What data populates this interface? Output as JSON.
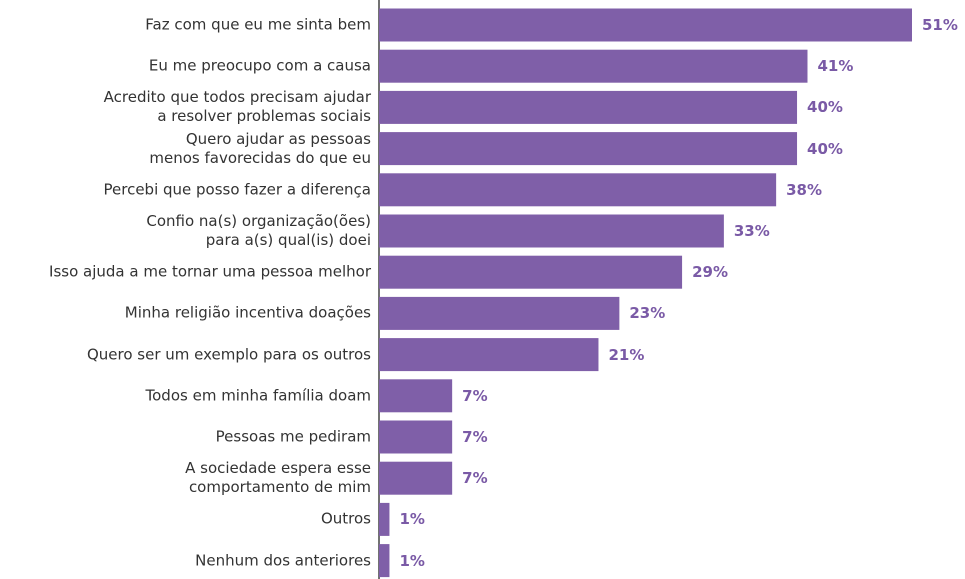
{
  "chart_data": {
    "type": "barh",
    "categories": [
      "Faz com que eu me sinta bem",
      "Eu me preocupo com a causa",
      "Acredito que todos precisam ajudar\na resolver problemas sociais",
      "Quero ajudar as pessoas\nmenos favorecidas do que eu",
      "Percebi que posso fazer a diferença",
      "Confio na(s) organização(ões)\npara a(s) qual(is) doei",
      "Isso ajuda a me tornar uma pessoa melhor",
      "Minha religião incentiva doações",
      "Quero ser um exemplo para os outros",
      "Todos em minha família doam",
      "Pessoas me pediram",
      "A sociedade espera esse\ncomportamento de mim",
      "Outros",
      "Nenhum dos anteriores"
    ],
    "values": [
      51,
      41,
      40,
      40,
      38,
      33,
      29,
      23,
      21,
      7,
      7,
      7,
      1,
      1
    ],
    "value_labels": [
      "51%",
      "41%",
      "40%",
      "40%",
      "38%",
      "33%",
      "29%",
      "23%",
      "21%",
      "7%",
      "7%",
      "7%",
      "1%",
      "1%"
    ],
    "color": "#7f5fa8"
  }
}
